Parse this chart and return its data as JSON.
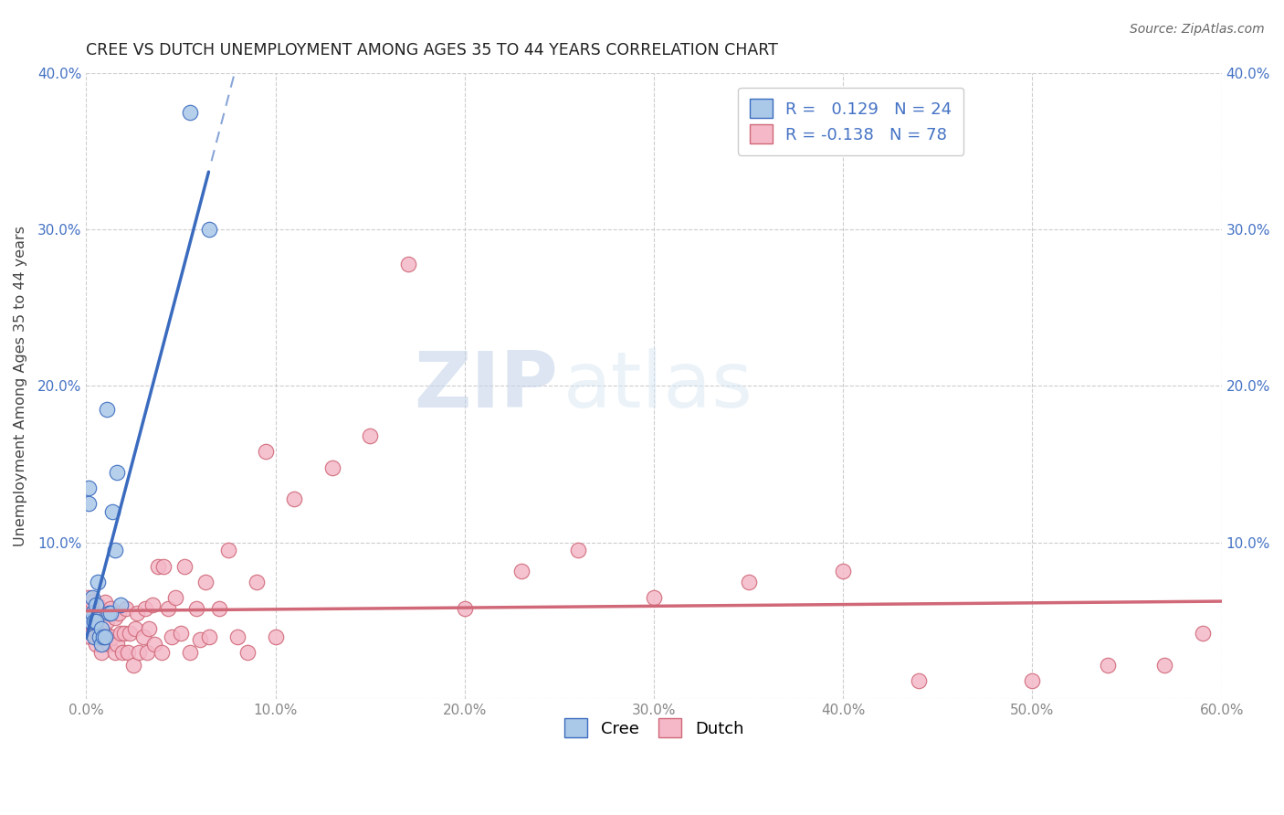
{
  "title": "CREE VS DUTCH UNEMPLOYMENT AMONG AGES 35 TO 44 YEARS CORRELATION CHART",
  "source": "Source: ZipAtlas.com",
  "ylabel": "Unemployment Among Ages 35 to 44 years",
  "xlim": [
    0,
    0.6
  ],
  "ylim": [
    0,
    0.4
  ],
  "xticks": [
    0.0,
    0.1,
    0.2,
    0.3,
    0.4,
    0.5,
    0.6
  ],
  "yticks": [
    0.0,
    0.1,
    0.2,
    0.3,
    0.4
  ],
  "xtick_labels": [
    "0.0%",
    "10.0%",
    "20.0%",
    "30.0%",
    "40.0%",
    "50.0%",
    "60.0%"
  ],
  "ytick_labels": [
    "",
    "10.0%",
    "20.0%",
    "30.0%",
    "40.0%"
  ],
  "cree_color": "#aac8e8",
  "dutch_color": "#f4b8c8",
  "cree_line_color": "#3a6bbf",
  "dutch_line_color": "#d06878",
  "cree_R": 0.129,
  "cree_N": 24,
  "dutch_R": -0.138,
  "dutch_N": 78,
  "watermark_zip": "ZIP",
  "watermark_atlas": "atlas",
  "cree_x": [
    0.001,
    0.001,
    0.002,
    0.003,
    0.003,
    0.004,
    0.004,
    0.005,
    0.005,
    0.006,
    0.007,
    0.008,
    0.008,
    0.009,
    0.01,
    0.011,
    0.012,
    0.013,
    0.014,
    0.015,
    0.016,
    0.018,
    0.055,
    0.065
  ],
  "cree_y": [
    0.125,
    0.135,
    0.05,
    0.055,
    0.065,
    0.04,
    0.05,
    0.05,
    0.06,
    0.075,
    0.04,
    0.035,
    0.045,
    0.04,
    0.04,
    0.185,
    0.055,
    0.055,
    0.12,
    0.095,
    0.145,
    0.06,
    0.375,
    0.3
  ],
  "dutch_x": [
    0.0,
    0.001,
    0.001,
    0.002,
    0.002,
    0.003,
    0.003,
    0.004,
    0.004,
    0.005,
    0.005,
    0.006,
    0.006,
    0.007,
    0.008,
    0.008,
    0.009,
    0.01,
    0.01,
    0.011,
    0.012,
    0.013,
    0.014,
    0.015,
    0.015,
    0.016,
    0.017,
    0.018,
    0.019,
    0.02,
    0.021,
    0.022,
    0.023,
    0.025,
    0.026,
    0.027,
    0.028,
    0.03,
    0.031,
    0.032,
    0.033,
    0.035,
    0.036,
    0.038,
    0.04,
    0.041,
    0.043,
    0.045,
    0.047,
    0.05,
    0.052,
    0.055,
    0.058,
    0.06,
    0.063,
    0.065,
    0.07,
    0.075,
    0.08,
    0.085,
    0.09,
    0.095,
    0.1,
    0.11,
    0.13,
    0.15,
    0.17,
    0.2,
    0.23,
    0.26,
    0.3,
    0.35,
    0.4,
    0.44,
    0.5,
    0.54,
    0.57,
    0.59
  ],
  "dutch_y": [
    0.055,
    0.05,
    0.065,
    0.04,
    0.058,
    0.042,
    0.062,
    0.045,
    0.055,
    0.035,
    0.05,
    0.04,
    0.06,
    0.045,
    0.03,
    0.055,
    0.04,
    0.042,
    0.062,
    0.05,
    0.035,
    0.058,
    0.04,
    0.03,
    0.052,
    0.035,
    0.055,
    0.042,
    0.03,
    0.042,
    0.058,
    0.03,
    0.042,
    0.022,
    0.045,
    0.055,
    0.03,
    0.04,
    0.058,
    0.03,
    0.045,
    0.06,
    0.035,
    0.085,
    0.03,
    0.085,
    0.058,
    0.04,
    0.065,
    0.042,
    0.085,
    0.03,
    0.058,
    0.038,
    0.075,
    0.04,
    0.058,
    0.095,
    0.04,
    0.03,
    0.075,
    0.158,
    0.04,
    0.128,
    0.148,
    0.168,
    0.278,
    0.058,
    0.082,
    0.095,
    0.065,
    0.075,
    0.082,
    0.012,
    0.012,
    0.022,
    0.022,
    0.042
  ],
  "background_color": "#ffffff",
  "grid_color": "#c8c8c8",
  "tick_color": "#888888",
  "label_color": "#4472c4",
  "title_color": "#222222"
}
